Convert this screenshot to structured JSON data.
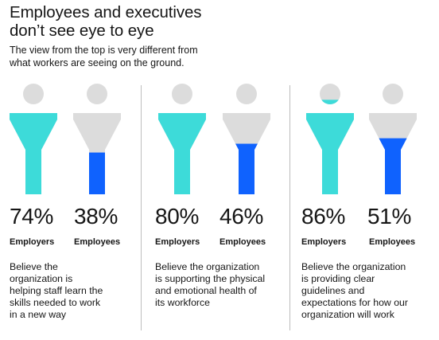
{
  "title_lines": [
    "Employees and executives",
    "don’t see eye to eye"
  ],
  "subtitle_lines": [
    "The view from the top is very different from",
    "what workers are seeing on the ground."
  ],
  "colors": {
    "employers": "#3ddbd9",
    "employees": "#0f62fe",
    "empty": "#dcdcdc"
  },
  "chart_data": {
    "type": "bar",
    "series_labels": [
      "Employers",
      "Employees"
    ],
    "panels": [
      {
        "employers_pct": 74,
        "employees_pct": 38,
        "employers_value": "74%",
        "employees_value": "38%",
        "employers_label": "Employers",
        "employees_label": "Employees",
        "description_lines": [
          "Believe the",
          "organization is",
          "helping staff learn the",
          "skills needed to work",
          "in a new way"
        ]
      },
      {
        "employers_pct": 80,
        "employees_pct": 46,
        "employers_value": "80%",
        "employees_value": "46%",
        "employers_label": "Employers",
        "employees_label": "Employees",
        "description_lines": [
          "Believe the organization",
          "is supporting the physical",
          "and emotional health of",
          "its workforce"
        ]
      },
      {
        "employers_pct": 86,
        "employees_pct": 51,
        "employers_value": "86%",
        "employees_value": "51%",
        "employers_label": "Employers",
        "employees_label": "Employees",
        "description_lines": [
          "Believe the organization",
          "is providing clear",
          "guidelines and",
          "expectations for how our",
          "organization will work"
        ]
      }
    ]
  }
}
